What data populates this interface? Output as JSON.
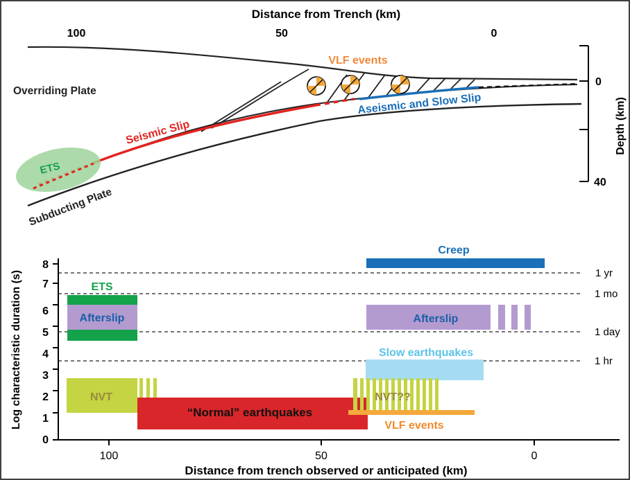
{
  "top": {
    "x_axis_title": "Distance from Trench (km)",
    "x_ticks": [
      "100",
      "50",
      "0"
    ],
    "y_axis_title": "Depth (km)",
    "y_ticks": [
      "0",
      "40"
    ],
    "labels": {
      "vlf": "VLF events",
      "overriding": "Overriding Plate",
      "seismic": "Seismic Slip",
      "aseismic": "Aseismic and Slow Slip",
      "ets": "ETS",
      "subducting": "Subducting Plate"
    },
    "colors": {
      "vlf": "#f0883a",
      "seismic": "#e42320",
      "aseismic": "#1a6fb8",
      "ets_text": "#14a24a",
      "ets_fill": "#9fd49b"
    }
  },
  "bottom": {
    "y_axis_title": "Log characteristic duration (s)",
    "x_axis_title": "Distance from trench observed or anticipated (km)",
    "y_ticks": [
      "0",
      "1",
      "2",
      "3",
      "4",
      "5",
      "6",
      "7",
      "8"
    ],
    "x_ticks": [
      "100",
      "50",
      "0"
    ],
    "reference_lines": [
      "1 yr",
      "1 mo",
      "1 day",
      "1 hr"
    ],
    "labels": {
      "creep": "Creep",
      "ets": "ETS",
      "afterslip_left": "Afterslip",
      "afterslip_right": "Afterslip",
      "slow_eq": "Slow earthquakes",
      "nvt": "NVT",
      "nvt_q": "NVT??",
      "normal_eq": "“Normal” earthquakes",
      "vlf": "VLF events"
    },
    "colors": {
      "creep": "#1a6fb8",
      "ets": "#14a24a",
      "afterslip": "#b39bd0",
      "afterslip_text": "#1a5fa8",
      "slow_eq": "#a6dcf3",
      "slow_eq_text": "#5bc3ea",
      "nvt": "#c4d442",
      "nvt_text": "#9a8a3a",
      "normal_eq": "#d9262a",
      "vlf": "#f3a93b",
      "vlf_text": "#f08a2a"
    }
  }
}
